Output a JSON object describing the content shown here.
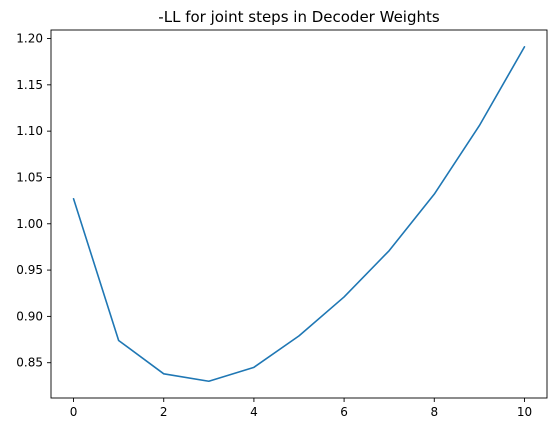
{
  "chart_data": {
    "type": "line",
    "title": "-LL for joint steps in Decoder Weights",
    "xlabel": "",
    "ylabel": "",
    "x": [
      0,
      1,
      2,
      3,
      4,
      5,
      6,
      7,
      8,
      9,
      10
    ],
    "series": [
      {
        "values": [
          1.027,
          0.874,
          0.838,
          0.83,
          0.845,
          0.879,
          0.921,
          0.971,
          1.032,
          1.106,
          1.191
        ],
        "color": "#1f77b4"
      }
    ],
    "xticks": [
      "0",
      "2",
      "4",
      "6",
      "8",
      "10"
    ],
    "yticks": [
      "0.85",
      "0.90",
      "0.95",
      "1.00",
      "1.05",
      "1.10",
      "1.15",
      "1.20"
    ],
    "xlim": [
      -0.5,
      10.5
    ],
    "ylim": [
      0.8119,
      1.2092
    ],
    "grid": false,
    "legend": "none"
  }
}
